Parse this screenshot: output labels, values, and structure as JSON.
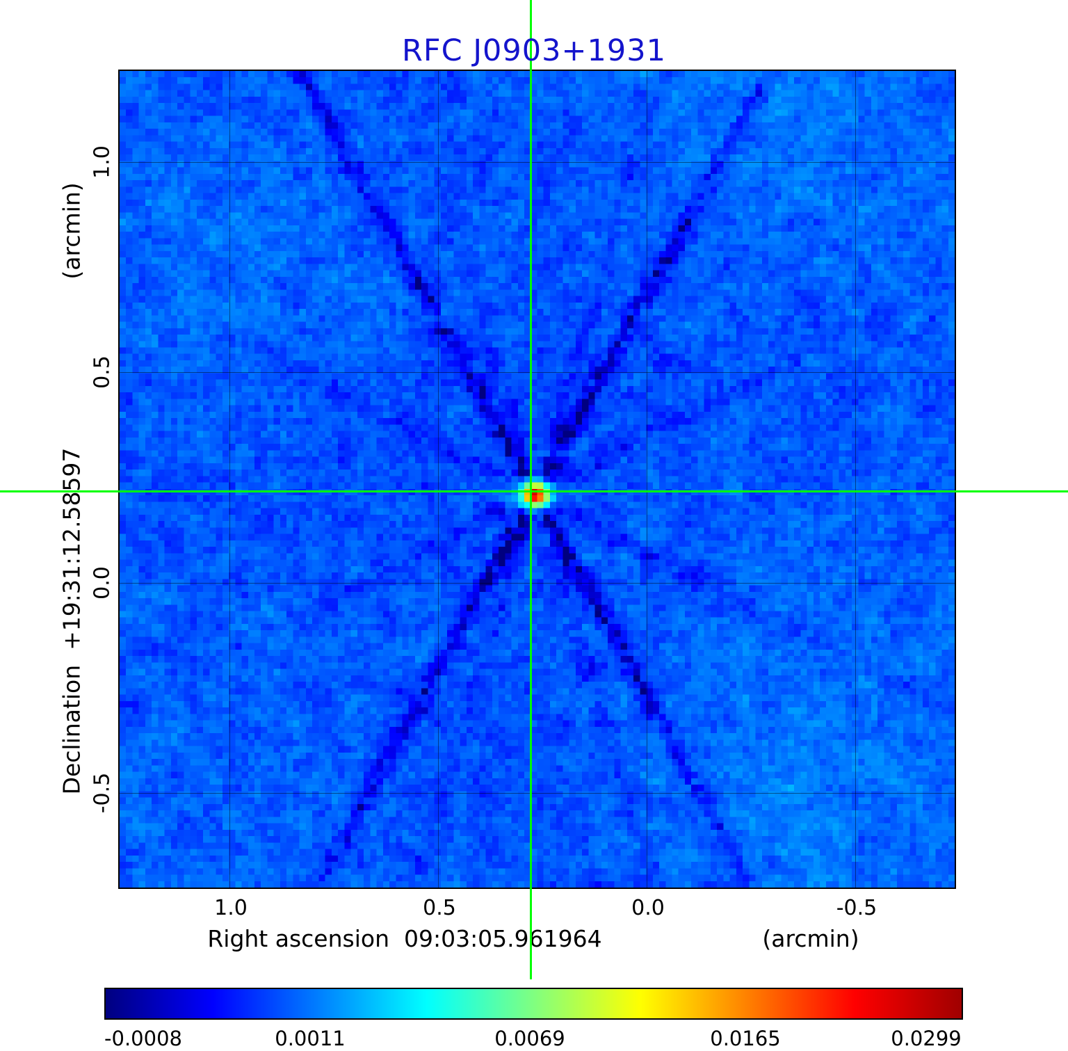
{
  "title": "RFC J0903+1931",
  "colors": {
    "title": "#1414cc",
    "crosshair": "#00ff00",
    "frame": "#000000",
    "background": "#ffffff"
  },
  "x_axis": {
    "label": "Right ascension  09:03:05.961964",
    "unit": "(arcmin)",
    "ticks": [
      "1.0",
      "0.5",
      "0.0",
      "-0.5"
    ]
  },
  "y_axis": {
    "label": "Declination  +19:31:12.58597",
    "unit": "(arcmin)",
    "ticks": [
      "1.0",
      "0.5",
      "0.0",
      "-0.5"
    ]
  },
  "colorbar": {
    "labels": [
      "-0.0008",
      "0.0011",
      "0.0069",
      "0.0165",
      "0.0299"
    ],
    "gradient": [
      "#000080",
      "#0000ff",
      "#0080ff",
      "#00ffff",
      "#80ff80",
      "#ffff00",
      "#ff8000",
      "#ff0000",
      "#a00000"
    ]
  },
  "chart_data": {
    "type": "heatmap",
    "title": "RFC J0903+1931",
    "xlabel": "Right ascension  09:03:05.961964  (arcmin)",
    "ylabel": "Declination  +19:31:12.58597  (arcmin)",
    "x_ticks_arcmin": [
      1.0,
      0.5,
      0.0,
      -0.5
    ],
    "y_ticks_arcmin": [
      1.0,
      0.5,
      0.0,
      -0.5
    ],
    "x_range_arcmin": [
      1.27,
      -0.74
    ],
    "y_range_arcmin": [
      -0.61,
      1.11
    ],
    "colorbar_ticks": [
      -0.0008,
      0.0011,
      0.0069,
      0.0165,
      0.0299
    ],
    "value_min": -0.0008,
    "value_max": 0.0299,
    "peak_value": 0.0299,
    "source_position_arcmin": {
      "ra_offset": 0.28,
      "dec_offset": 0.22
    },
    "colormap": "jet",
    "grid": true,
    "crosshair_on_source": true,
    "legend_position": "colorbar-bottom",
    "content_summary": "Compact bright source at the green crosshair over a blue noise field with X-shaped dark sidelobe streaks"
  }
}
